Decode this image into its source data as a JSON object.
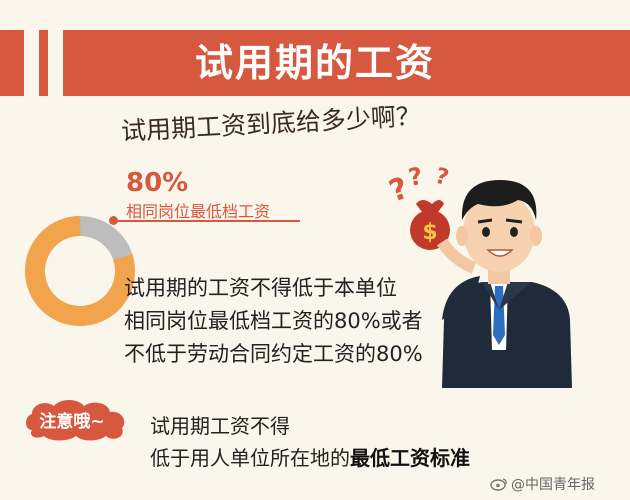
{
  "banner": {
    "title": "试用期的工资"
  },
  "question": "试用期工资到底给多少啊？",
  "stat": {
    "percent": "80%",
    "label": "相同岗位最低档工资",
    "fraction": 0.8
  },
  "description": [
    "试用期的工资不得低于本单位",
    "相同岗位最低档工资的80%或者",
    "不低于劳动合同约定工资的80%"
  ],
  "note": {
    "badge": "注意哦~",
    "line1": "试用期工资不得",
    "line2_prefix": "低于用人单位所在地的",
    "line2_bold": "最低工资标准"
  },
  "watermark": "@中国青年报",
  "colors": {
    "accent": "#d6583e",
    "donut_main": "#f2a44c",
    "donut_rest": "#bdbdbd",
    "background": "#fbf6ec"
  },
  "icons": [
    "money-bag-icon",
    "question-mark-icon",
    "weibo-logo-icon"
  ]
}
